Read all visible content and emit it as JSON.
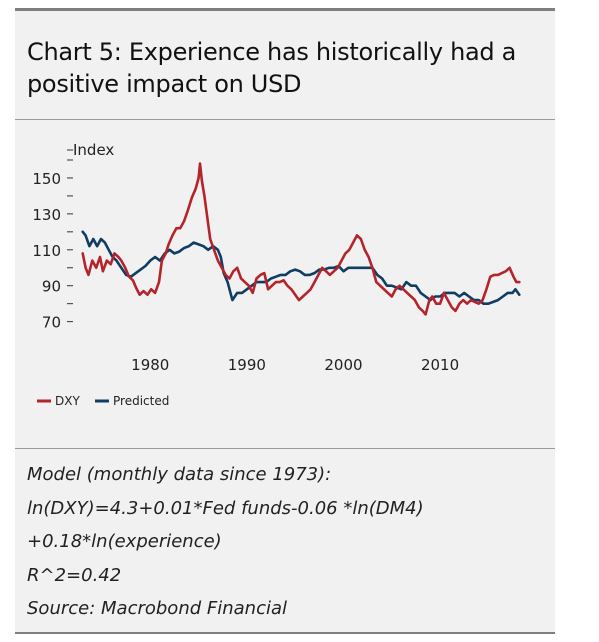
{
  "title": "Chart 5: Experience has historically had a positive impact on USD",
  "notes": [
    "Model (monthly data since 1973):",
    "ln(DXY)=4.3+0.01*Fed funds-0.06 *ln(DM4)",
    "+0.18*ln(experience)",
    "R^2=0.42",
    "Source: Macrobond Financial"
  ],
  "colors": {
    "dxy": "#b5232b",
    "predicted": "#0f3d63"
  },
  "chart_data": {
    "type": "line",
    "ylabel": "Index",
    "xlim": [
      1972,
      2019
    ],
    "ylim": [
      62,
      160
    ],
    "y_ticks": [
      70,
      90,
      110,
      130,
      150
    ],
    "y_minor_ticks": [
      80,
      100,
      120,
      140,
      160
    ],
    "x_ticks": [
      1980,
      1990,
      2000,
      2010
    ],
    "grid": false,
    "legend_position": "bottom-left",
    "series": [
      {
        "name": "DXY",
        "color": "#b5232b",
        "x": [
          1973.0,
          1973.3,
          1973.6,
          1974.0,
          1974.4,
          1974.8,
          1975.1,
          1975.5,
          1975.9,
          1976.3,
          1976.7,
          1977.0,
          1977.4,
          1977.8,
          1978.2,
          1978.6,
          1978.9,
          1979.3,
          1979.7,
          1980.1,
          1980.5,
          1980.9,
          1981.2,
          1981.6,
          1981.9,
          1982.3,
          1982.7,
          1983.1,
          1983.5,
          1983.9,
          1984.3,
          1984.7,
          1985.0,
          1985.15,
          1985.35,
          1985.6,
          1985.9,
          1986.2,
          1986.6,
          1987.0,
          1987.4,
          1987.8,
          1988.2,
          1988.6,
          1989.0,
          1989.4,
          1989.8,
          1990.2,
          1990.6,
          1991.0,
          1991.4,
          1991.8,
          1992.2,
          1992.6,
          1993.0,
          1993.4,
          1993.8,
          1994.2,
          1994.6,
          1995.0,
          1995.4,
          1995.8,
          1996.2,
          1996.6,
          1997.0,
          1997.4,
          1997.8,
          1998.2,
          1998.6,
          1999.0,
          1999.4,
          1999.8,
          2000.2,
          2000.6,
          2001.0,
          2001.4,
          2001.8,
          2002.2,
          2002.6,
          2003.0,
          2003.4,
          2003.8,
          2004.2,
          2004.6,
          2005.0,
          2005.4,
          2005.8,
          2006.2,
          2006.6,
          2007.0,
          2007.4,
          2007.8,
          2008.2,
          2008.5,
          2008.9,
          2009.2,
          2009.6,
          2010.0,
          2010.4,
          2010.8,
          2011.2,
          2011.6,
          2012.0,
          2012.4,
          2012.8,
          2013.2,
          2013.6,
          2014.0,
          2014.4,
          2014.8,
          2015.2,
          2015.6,
          2016.0,
          2016.4,
          2016.8,
          2017.2,
          2017.6,
          2017.9,
          2018.2
        ],
        "values": [
          108,
          100,
          96,
          104,
          100,
          106,
          98,
          104,
          102,
          108,
          106,
          104,
          100,
          95,
          93,
          88,
          85,
          87,
          85,
          88,
          86,
          92,
          104,
          108,
          113,
          118,
          122,
          122,
          126,
          132,
          139,
          144,
          150,
          158,
          148,
          140,
          128,
          116,
          110,
          104,
          100,
          96,
          94,
          98,
          100,
          94,
          92,
          90,
          86,
          94,
          96,
          97,
          88,
          90,
          92,
          92,
          93,
          90,
          88,
          85,
          82,
          84,
          86,
          88,
          92,
          96,
          100,
          98,
          96,
          98,
          100,
          104,
          108,
          110,
          114,
          118,
          116,
          110,
          106,
          100,
          92,
          90,
          88,
          86,
          84,
          88,
          90,
          88,
          86,
          84,
          82,
          78,
          76,
          74,
          82,
          84,
          80,
          80,
          86,
          82,
          78,
          76,
          80,
          82,
          80,
          82,
          81,
          80,
          82,
          88,
          95,
          96,
          96,
          97,
          98,
          100,
          95,
          92,
          92
        ],
        "values_note": "monthly index levels read from chart"
      },
      {
        "name": "Predicted",
        "color": "#0f3d63",
        "x": [
          1973.0,
          1973.3,
          1973.7,
          1974.1,
          1974.5,
          1974.9,
          1975.3,
          1975.7,
          1976.1,
          1976.5,
          1977.0,
          1977.5,
          1978.0,
          1978.5,
          1979.0,
          1979.5,
          1980.0,
          1980.5,
          1981.0,
          1981.5,
          1982.0,
          1982.5,
          1983.0,
          1983.5,
          1984.0,
          1984.5,
          1985.0,
          1985.5,
          1986.0,
          1986.5,
          1987.0,
          1987.3,
          1987.6,
          1988.0,
          1988.5,
          1989.0,
          1989.5,
          1990.0,
          1990.5,
          1991.0,
          1991.5,
          1992.0,
          1992.5,
          1993.0,
          1993.5,
          1994.0,
          1994.5,
          1995.0,
          1995.5,
          1996.0,
          1996.5,
          1997.0,
          1997.5,
          1998.0,
          1998.5,
          1999.0,
          1999.5,
          2000.0,
          2000.5,
          2001.0,
          2001.5,
          2002.0,
          2002.5,
          2003.0,
          2003.5,
          2004.0,
          2004.5,
          2005.0,
          2005.5,
          2006.0,
          2006.5,
          2007.0,
          2007.5,
          2008.0,
          2008.5,
          2009.0,
          2009.5,
          2010.0,
          2010.5,
          2011.0,
          2011.5,
          2012.0,
          2012.5,
          2013.0,
          2013.5,
          2014.0,
          2014.5,
          2015.0,
          2015.5,
          2016.0,
          2016.5,
          2017.0,
          2017.5,
          2017.8,
          2018.2
        ],
        "values": [
          120,
          118,
          112,
          116,
          112,
          116,
          114,
          110,
          106,
          104,
          100,
          96,
          95,
          97,
          99,
          101,
          104,
          106,
          104,
          108,
          110,
          108,
          109,
          111,
          112,
          114,
          113,
          112,
          110,
          112,
          110,
          106,
          97,
          92,
          82,
          86,
          86,
          88,
          90,
          92,
          92,
          92,
          94,
          95,
          96,
          96,
          98,
          99,
          98,
          96,
          96,
          97,
          99,
          99,
          100,
          100,
          101,
          98,
          100,
          100,
          100,
          100,
          100,
          100,
          96,
          94,
          90,
          90,
          89,
          88,
          92,
          90,
          90,
          86,
          84,
          82,
          84,
          84,
          86,
          86,
          86,
          84,
          86,
          84,
          82,
          82,
          80,
          80,
          81,
          82,
          84,
          86,
          86,
          88,
          85
        ]
      }
    ]
  }
}
